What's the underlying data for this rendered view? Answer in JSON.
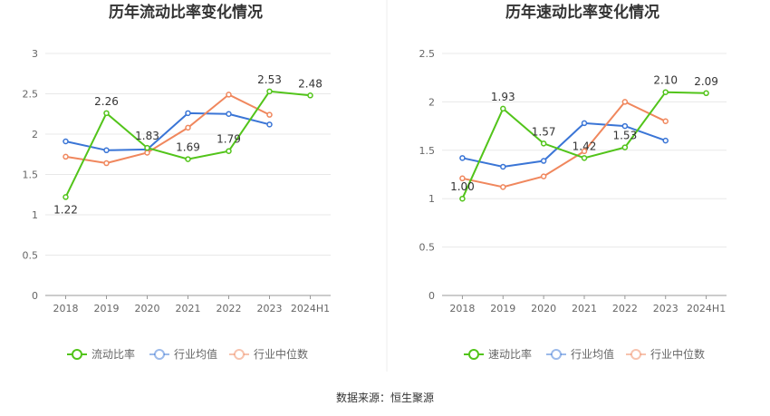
{
  "source": "数据来源：恒生聚源",
  "chart_data": [
    {
      "type": "line",
      "title": "历年流动比率变化情况",
      "categories": [
        "2018",
        "2019",
        "2020",
        "2021",
        "2022",
        "2023",
        "2024H1"
      ],
      "ylim": [
        0,
        3
      ],
      "yticks": [
        "0",
        "0.5",
        "1",
        "1.5",
        "2",
        "2.5",
        "3"
      ],
      "grid": true,
      "legend_position": "bottom",
      "series": [
        {
          "name": "流动比率",
          "color": "#52c41a",
          "labeled": true,
          "values": [
            1.22,
            2.26,
            1.83,
            1.69,
            1.79,
            2.53,
            2.48
          ],
          "labels": [
            "1.22",
            "2.26",
            "1.83",
            "1.69",
            "1.79",
            "2.53",
            "2.48"
          ]
        },
        {
          "name": "行业均值",
          "color": "#3a75d6",
          "labeled": false,
          "values": [
            1.91,
            1.8,
            1.81,
            2.26,
            2.25,
            2.12,
            null
          ]
        },
        {
          "name": "行业中位数",
          "color": "#f0875d",
          "labeled": false,
          "values": [
            1.72,
            1.64,
            1.77,
            2.08,
            2.49,
            2.24,
            null
          ]
        }
      ]
    },
    {
      "type": "line",
      "title": "历年速动比率变化情况",
      "categories": [
        "2018",
        "2019",
        "2020",
        "2021",
        "2022",
        "2023",
        "2024H1"
      ],
      "ylim": [
        0,
        2.5
      ],
      "yticks": [
        "0",
        "0.5",
        "1",
        "1.5",
        "2",
        "2.5"
      ],
      "grid": true,
      "legend_position": "bottom",
      "series": [
        {
          "name": "速动比率",
          "color": "#52c41a",
          "labeled": true,
          "values": [
            1.0,
            1.93,
            1.57,
            1.42,
            1.53,
            2.1,
            2.09
          ],
          "labels": [
            "1.00",
            "1.93",
            "1.57",
            "1.42",
            "1.53",
            "2.10",
            "2.09"
          ]
        },
        {
          "name": "行业均值",
          "color": "#3a75d6",
          "labeled": false,
          "values": [
            1.42,
            1.33,
            1.39,
            1.78,
            1.75,
            1.6,
            null
          ]
        },
        {
          "name": "行业中位数",
          "color": "#f0875d",
          "labeled": false,
          "values": [
            1.21,
            1.12,
            1.23,
            1.49,
            2.0,
            1.8,
            null
          ]
        }
      ]
    }
  ]
}
